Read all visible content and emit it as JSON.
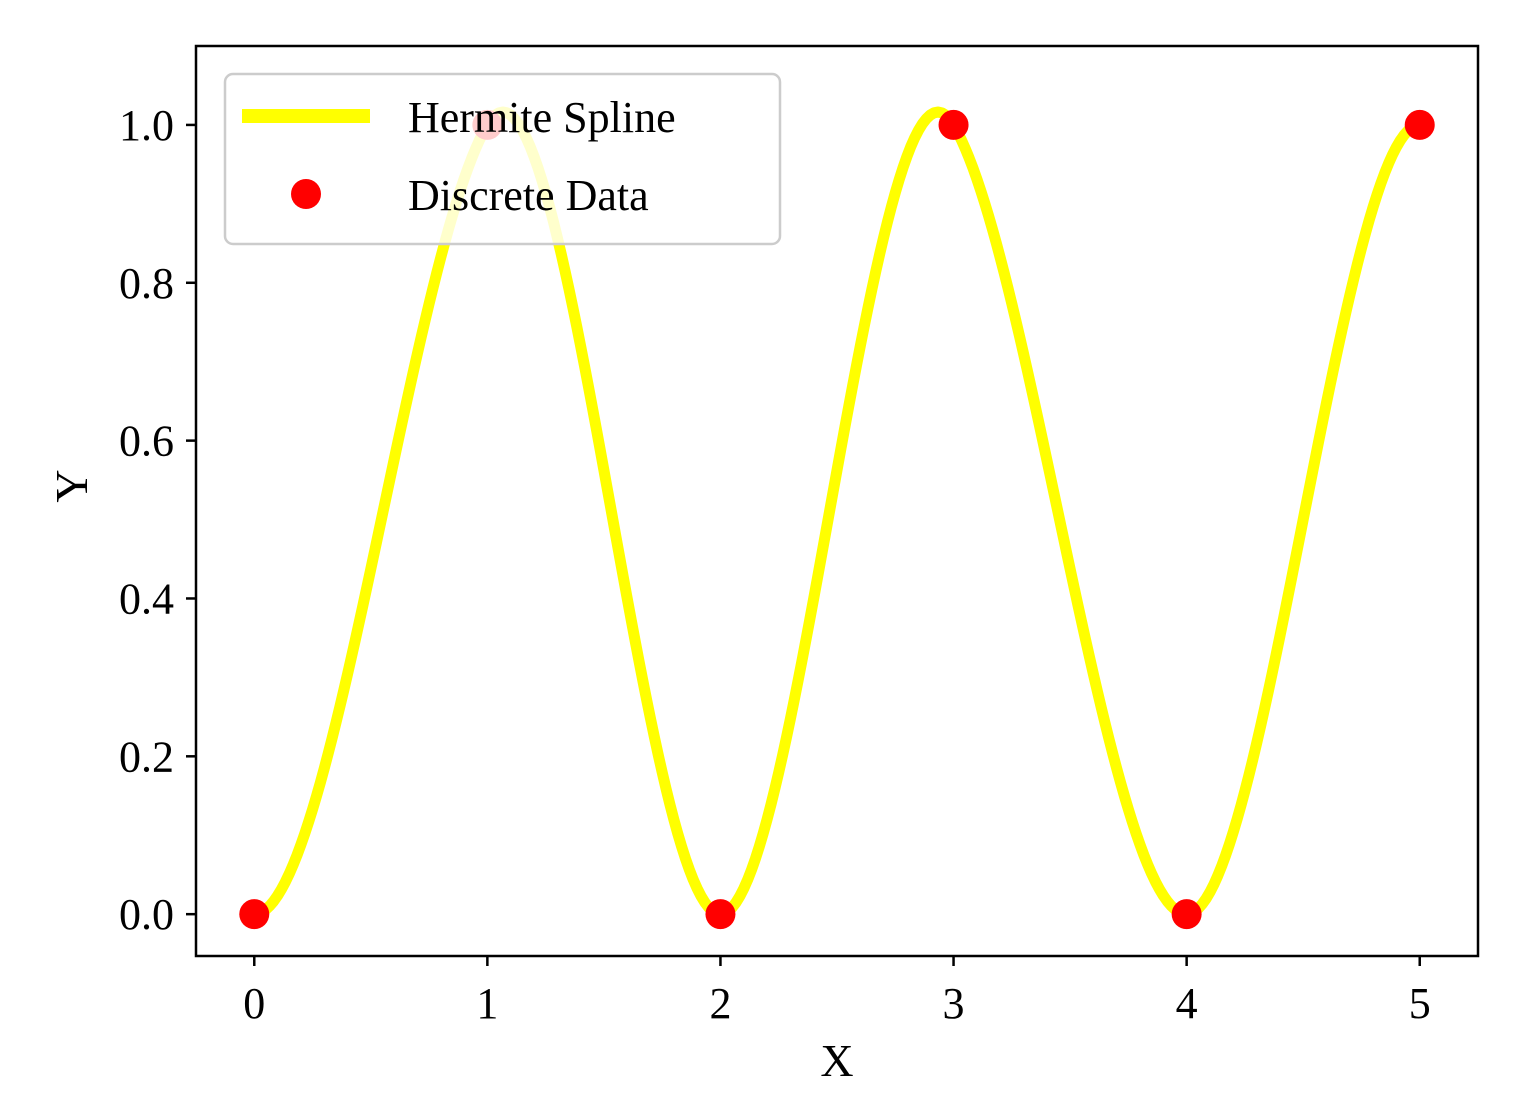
{
  "chart_data": {
    "type": "line",
    "title": "",
    "xlabel": "X",
    "ylabel": "Y",
    "xlim": [
      -0.25,
      5.25
    ],
    "ylim": [
      -0.053,
      1.1
    ],
    "xticks": [
      0,
      1,
      2,
      3,
      4,
      5
    ],
    "xtick_labels": [
      "0",
      "1",
      "2",
      "3",
      "4",
      "5"
    ],
    "yticks": [
      0.0,
      0.2,
      0.4,
      0.6,
      0.8,
      1.0
    ],
    "ytick_labels": [
      "0.0",
      "0.2",
      "0.4",
      "0.6",
      "0.8",
      "1.0"
    ],
    "grid": false,
    "legend_position": "upper-left",
    "series": [
      {
        "name": "Hermite Spline",
        "kind": "line",
        "color": "#ffff00",
        "x": [
          0,
          1,
          2,
          3,
          4,
          5
        ],
        "y": [
          0,
          1,
          0,
          1,
          0,
          1
        ],
        "dydx": [
          0,
          0.5,
          0,
          -0.5,
          0,
          0
        ]
      },
      {
        "name": "Discrete Data",
        "kind": "markers",
        "color": "#ff0000",
        "x": [
          0,
          1,
          2,
          3,
          4,
          5
        ],
        "y": [
          0,
          1,
          0,
          1,
          0,
          1
        ]
      }
    ]
  }
}
